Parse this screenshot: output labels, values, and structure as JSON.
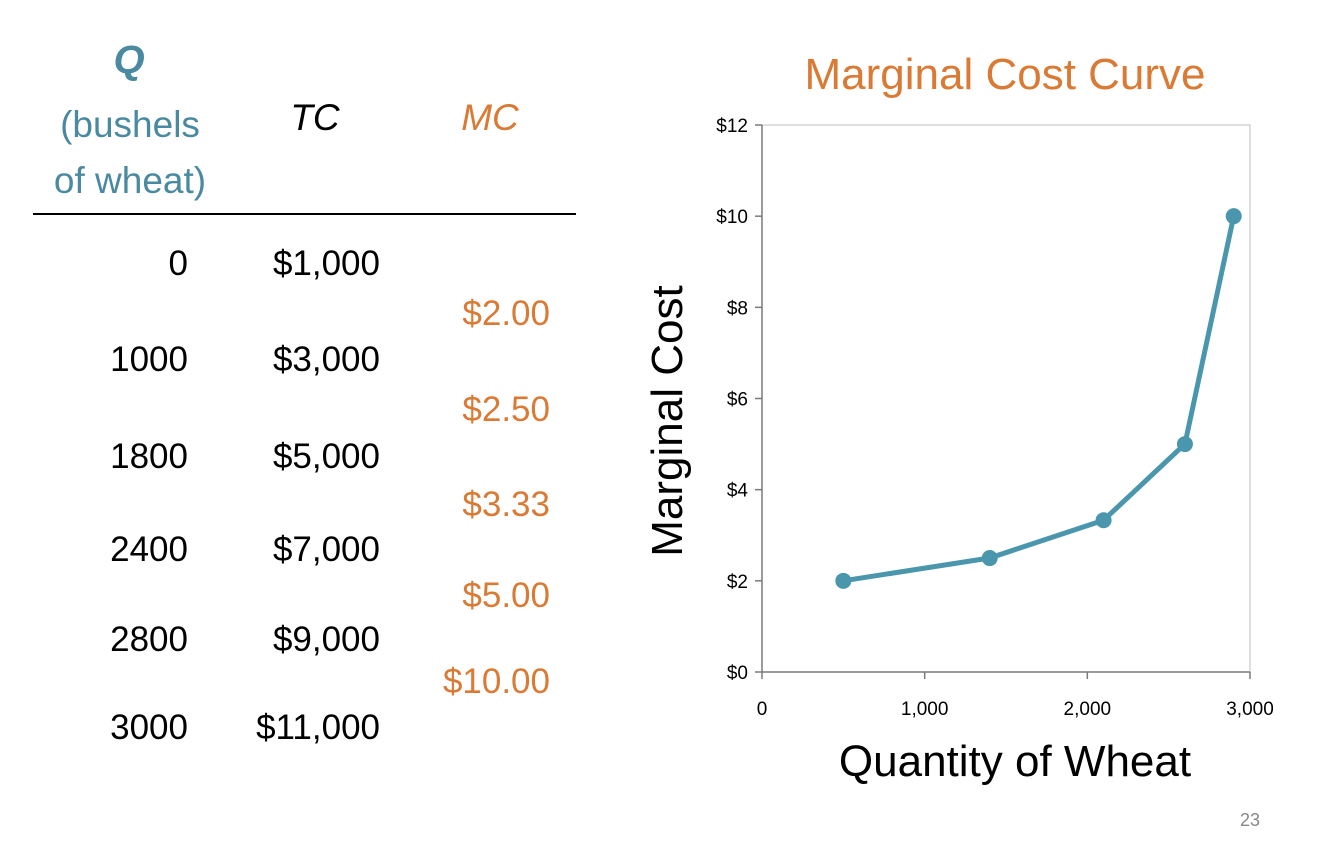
{
  "table": {
    "headers": {
      "q": "Q",
      "q_sub_1": "(bushels",
      "q_sub_2": "of wheat)",
      "tc": "TC",
      "mc": "MC"
    },
    "rows": [
      {
        "q": "0",
        "tc": "$1,000"
      },
      {
        "q": "1000",
        "tc": "$3,000"
      },
      {
        "q": "1800",
        "tc": "$5,000"
      },
      {
        "q": "2400",
        "tc": "$7,000"
      },
      {
        "q": "2800",
        "tc": "$9,000"
      },
      {
        "q": "3000",
        "tc": "$11,000"
      }
    ],
    "mc_values": [
      "$2.00",
      "$2.50",
      "$3.33",
      "$5.00",
      "$10.00"
    ]
  },
  "chart_data": {
    "type": "line",
    "title": "Marginal Cost Curve",
    "xlabel": "Quantity of Wheat",
    "ylabel": "Marginal Cost",
    "xlim": [
      0,
      3000
    ],
    "ylim": [
      0,
      12
    ],
    "x_ticks": [
      "0",
      "1,000",
      "2,000",
      "3,000"
    ],
    "y_ticks": [
      "$0",
      "$2",
      "$4",
      "$6",
      "$8",
      "$10",
      "$12"
    ],
    "series": [
      {
        "x": [
          500,
          1400,
          2100,
          2600,
          2900
        ],
        "y": [
          2.0,
          2.5,
          3.33,
          5.0,
          10.0
        ]
      }
    ],
    "line_color": "#4a96ad",
    "grid": false
  },
  "page_number": "23"
}
